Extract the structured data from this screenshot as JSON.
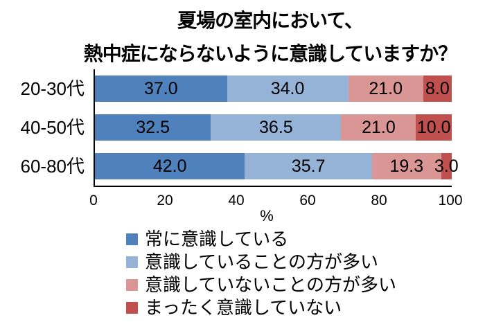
{
  "title": {
    "line1": "夏場の室内において、",
    "line2": "熱中症にならないように意識していますか？"
  },
  "colors": {
    "series": [
      "#4F81BD",
      "#95B3D7",
      "#D99694",
      "#C0504D"
    ],
    "axis": "#000000",
    "label_text": "#000000",
    "background": "#FFFFFF"
  },
  "chart_data": {
    "type": "bar",
    "orientation": "horizontal",
    "stacked": true,
    "title": "夏場の室内において、熱中症にならないように意識していますか？",
    "categories": [
      "20-30代",
      "40-50代",
      "60-80代"
    ],
    "series": [
      {
        "name": "常に意識している",
        "color": "#4F81BD",
        "values": [
          37.0,
          32.5,
          42.0
        ]
      },
      {
        "name": "意識していることの方が多い",
        "color": "#95B3D7",
        "values": [
          34.0,
          36.5,
          35.7
        ]
      },
      {
        "name": "意識していないことの方が多い",
        "color": "#D99694",
        "values": [
          21.0,
          21.0,
          19.3
        ]
      },
      {
        "name": "まったく意識していない",
        "color": "#C0504D",
        "values": [
          8.0,
          10.0,
          3.0
        ]
      }
    ],
    "x_ticks": [
      "0",
      "20",
      "40",
      "60",
      "80",
      "100"
    ],
    "xlim": [
      0,
      100
    ],
    "xlabel": "%",
    "value_labels": "one_decimal_inside",
    "grid": false,
    "legend_position": "bottom-left"
  }
}
